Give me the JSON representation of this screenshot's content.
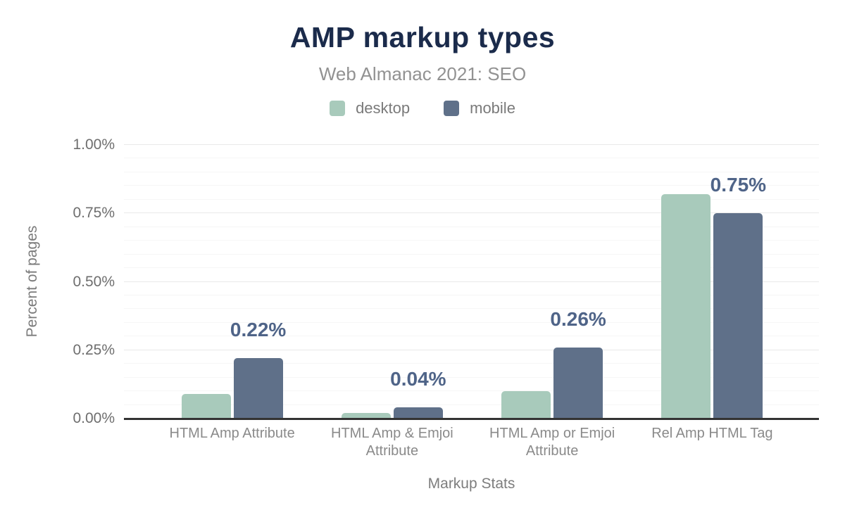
{
  "title": "AMP markup types",
  "subtitle": "Web Almanac 2021: SEO",
  "legend": {
    "items": [
      {
        "label": "desktop"
      },
      {
        "label": "mobile"
      }
    ]
  },
  "chart_data": {
    "type": "bar",
    "title": "AMP markup types",
    "subtitle": "Web Almanac 2021: SEO",
    "categories": [
      "HTML Amp Attribute",
      "HTML Amp & Emjoi Attribute",
      "HTML Amp or Emjoi Attribute",
      "Rel Amp HTML Tag"
    ],
    "series": [
      {
        "name": "desktop",
        "color": "#a8cabb",
        "values": [
          0.09,
          0.02,
          0.1,
          0.82
        ]
      },
      {
        "name": "mobile",
        "color": "#5f7089",
        "values": [
          0.22,
          0.04,
          0.26,
          0.75
        ]
      }
    ],
    "data_labels": {
      "labeled_series": "mobile",
      "values": [
        "0.22%",
        "0.04%",
        "0.26%",
        "0.75%"
      ]
    },
    "xlabel": "Markup Stats",
    "ylabel": "Percent of pages",
    "ylim": [
      0,
      1.0
    ],
    "yticks": [
      {
        "value": 0.0,
        "label": "0.00%"
      },
      {
        "value": 0.25,
        "label": "0.25%"
      },
      {
        "value": 0.5,
        "label": "0.50%"
      },
      {
        "value": 0.75,
        "label": "0.75%"
      },
      {
        "value": 1.0,
        "label": "1.00%"
      }
    ],
    "grid": {
      "major_step": 0.25,
      "minor_step": 0.05,
      "grid_on": true
    },
    "legend_position": "top"
  },
  "colors": {
    "title": "#1b2b4b",
    "subtitle": "#929292",
    "desktop": "#a8cabb",
    "mobile": "#5f7089",
    "data_label": "#4f6488",
    "axis_line": "#333333",
    "grid_major": "#e9e9e9",
    "grid_minor": "#f6f6f6",
    "tick_text": "#6e6e6e"
  }
}
